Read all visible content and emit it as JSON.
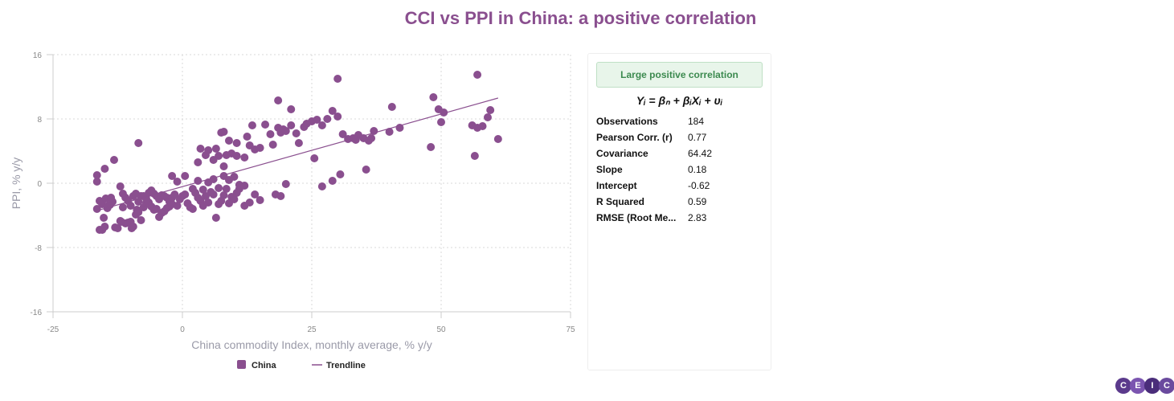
{
  "title": "CCI vs PPI in China: a positive correlation",
  "colors": {
    "series": "#8a4f8f",
    "title": "#8a4f8f",
    "badge_text": "#3c8a4f",
    "badge_bg": "#e8f5ea"
  },
  "stats_panel": {
    "badge": "Large positive correlation",
    "formula": "Yᵢ = βₙ + βᵢXᵢ + υᵢ",
    "rows": [
      {
        "label": "Observations",
        "value": "184"
      },
      {
        "label": "Pearson Corr. (r)",
        "value": "0.77"
      },
      {
        "label": "Covariance",
        "value": "64.42"
      },
      {
        "label": "Slope",
        "value": "0.18"
      },
      {
        "label": "Intercept",
        "value": "-0.62"
      },
      {
        "label": "R Squared",
        "value": "0.59"
      },
      {
        "label": "RMSE (Root Me...",
        "value": "2.83"
      }
    ]
  },
  "logo": [
    "C",
    "E",
    "I",
    "C"
  ],
  "chart_data": {
    "type": "scatter",
    "title": "CCI vs PPI in China: a positive correlation",
    "xlabel": "China commodity Index, monthly average, % y/y",
    "ylabel": "PPI, % y/y",
    "xlim": [
      -25,
      75
    ],
    "ylim": [
      -16,
      16
    ],
    "xticks": [
      "-25",
      "0",
      "25",
      "50",
      "75"
    ],
    "yticks": [
      "16",
      "8",
      "0",
      "-8",
      "-16"
    ],
    "grid": true,
    "legend_position": "bottom",
    "legend": [
      {
        "name": "China",
        "kind": "marker"
      },
      {
        "name": "Trendline",
        "kind": "line"
      }
    ],
    "trendline": {
      "x": [
        -17,
        61
      ],
      "y": [
        -3.5,
        10.6
      ]
    },
    "series": [
      {
        "name": "China",
        "points": [
          [
            -16.5,
            1
          ],
          [
            -16.5,
            0.2
          ],
          [
            -15,
            1.8
          ],
          [
            -13.2,
            2.9
          ],
          [
            -8.5,
            5
          ],
          [
            -16.5,
            -3.2
          ],
          [
            -16,
            -5.8
          ],
          [
            -15.5,
            -5.8
          ],
          [
            -15,
            -5.4
          ],
          [
            -15.2,
            -4.3
          ],
          [
            -14.5,
            -3.1
          ],
          [
            -14,
            -2.7
          ],
          [
            -13.5,
            -2.3
          ],
          [
            -13,
            -5.5
          ],
          [
            -12.5,
            -5.6
          ],
          [
            -12,
            -4.7
          ],
          [
            -11.8,
            -4.8
          ],
          [
            -11.5,
            -3
          ],
          [
            -11,
            -5
          ],
          [
            -10.5,
            -4.9
          ],
          [
            -10,
            -4.8
          ],
          [
            -9.8,
            -5.6
          ],
          [
            -9.5,
            -5.4
          ],
          [
            -9,
            -3.9
          ],
          [
            -8.8,
            -3.3
          ],
          [
            -8.5,
            -3.6
          ],
          [
            -8,
            -4.6
          ],
          [
            -7.5,
            -3
          ],
          [
            -7,
            -2.4
          ],
          [
            -6.5,
            -2.4
          ],
          [
            -6,
            -2.9
          ],
          [
            -5.5,
            -3.3
          ],
          [
            -5,
            -3.2
          ],
          [
            -4.5,
            -4.2
          ],
          [
            -4,
            -3.7
          ],
          [
            -3.5,
            -3.5
          ],
          [
            -3,
            -3.1
          ],
          [
            -2.5,
            -2.9
          ],
          [
            -2,
            -2.6
          ],
          [
            -16,
            -2.2
          ],
          [
            -15.5,
            -2.6
          ],
          [
            -14.8,
            -1.9
          ],
          [
            -14.3,
            -2.8
          ],
          [
            -13.8,
            -1.8
          ],
          [
            -12,
            -0.4
          ],
          [
            -11.5,
            -1.3
          ],
          [
            -11,
            -1.8
          ],
          [
            -10.5,
            -2.2
          ],
          [
            -10,
            -2.8
          ],
          [
            -9.5,
            -1.6
          ],
          [
            -9,
            -1.3
          ],
          [
            -8.5,
            -2.3
          ],
          [
            -8,
            -1.6
          ],
          [
            -7.5,
            -1.6
          ],
          [
            -7,
            -1.9
          ],
          [
            -6.5,
            -1.2
          ],
          [
            -6,
            -0.9
          ],
          [
            -5.5,
            -1.3
          ],
          [
            -5,
            -1.6
          ],
          [
            -4.5,
            -2
          ],
          [
            -4,
            -1.5
          ],
          [
            -3.5,
            -1.6
          ],
          [
            -3,
            -1.8
          ],
          [
            -2.5,
            -2.3
          ],
          [
            -2,
            -1.8
          ],
          [
            -1.5,
            -1.4
          ],
          [
            -1,
            -2.8
          ],
          [
            -0.5,
            -2
          ],
          [
            0,
            -1.6
          ],
          [
            0.5,
            -1.4
          ],
          [
            1,
            -2.5
          ],
          [
            1.5,
            -3
          ],
          [
            2,
            -3.2
          ],
          [
            2.5,
            -1.2
          ],
          [
            3,
            -1.8
          ],
          [
            3.5,
            -2.2
          ],
          [
            4,
            -2.8
          ],
          [
            4.5,
            -1.6
          ],
          [
            5,
            -2.4
          ],
          [
            5.5,
            -1.1
          ],
          [
            6,
            -1.4
          ],
          [
            6.5,
            -4.3
          ],
          [
            7,
            -2.6
          ],
          [
            7.5,
            -2.2
          ],
          [
            8,
            -1.5
          ],
          [
            8.5,
            -0.7
          ],
          [
            9,
            -2.5
          ],
          [
            9.5,
            -1.7
          ],
          [
            10,
            -2
          ],
          [
            10.5,
            -1.2
          ],
          [
            11,
            -0.2
          ],
          [
            12,
            -2.8
          ],
          [
            13,
            -2.4
          ],
          [
            14,
            -1.4
          ],
          [
            15,
            -2.1
          ],
          [
            -2,
            0.9
          ],
          [
            -1,
            0.2
          ],
          [
            0.5,
            0.9
          ],
          [
            2,
            -0.7
          ],
          [
            3,
            0.3
          ],
          [
            4,
            -0.8
          ],
          [
            5,
            0.1
          ],
          [
            6,
            0.5
          ],
          [
            7,
            -0.6
          ],
          [
            8,
            0.9
          ],
          [
            9,
            0.4
          ],
          [
            10,
            0.8
          ],
          [
            11,
            -0.7
          ],
          [
            12,
            -0.3
          ],
          [
            3,
            2.6
          ],
          [
            3.5,
            4.3
          ],
          [
            4.5,
            3.5
          ],
          [
            5,
            4.1
          ],
          [
            6.5,
            4.3
          ],
          [
            7,
            3.4
          ],
          [
            8,
            2.1
          ],
          [
            8.5,
            3.5
          ],
          [
            9.5,
            3.7
          ],
          [
            10.5,
            3.4
          ],
          [
            6,
            2.9
          ],
          [
            7.5,
            6.3
          ],
          [
            8,
            6.4
          ],
          [
            9,
            5.3
          ],
          [
            10.5,
            5
          ],
          [
            12,
            3.2
          ],
          [
            12.5,
            5.8
          ],
          [
            13,
            4.7
          ],
          [
            13.5,
            7.2
          ],
          [
            14,
            4.2
          ],
          [
            15,
            4.4
          ],
          [
            16,
            7.3
          ],
          [
            17,
            6.1
          ],
          [
            18.5,
            6.9
          ],
          [
            19,
            6.3
          ],
          [
            19.5,
            6.7
          ],
          [
            20,
            6.5
          ],
          [
            21,
            7.2
          ],
          [
            22,
            6.2
          ],
          [
            22.5,
            5
          ],
          [
            23.5,
            7
          ],
          [
            24,
            7.4
          ],
          [
            25,
            7.7
          ],
          [
            26,
            7.9
          ],
          [
            27,
            7.2
          ],
          [
            28,
            8
          ],
          [
            29,
            9
          ],
          [
            30,
            8.3
          ],
          [
            31,
            6.1
          ],
          [
            32,
            5.5
          ],
          [
            33,
            5.6
          ],
          [
            34,
            6
          ],
          [
            35,
            5.6
          ],
          [
            36,
            5.3
          ],
          [
            37,
            6.5
          ],
          [
            21,
            9.2
          ],
          [
            18.5,
            10.3
          ],
          [
            18,
            -1.4
          ],
          [
            19,
            -1.6
          ],
          [
            20,
            -0.1
          ],
          [
            27,
            -0.4
          ],
          [
            29,
            0.3
          ],
          [
            30.5,
            1.1
          ],
          [
            35.5,
            1.7
          ],
          [
            40,
            6.4
          ],
          [
            42,
            6.9
          ],
          [
            40.5,
            9.5
          ],
          [
            48,
            4.5
          ],
          [
            48.5,
            10.7
          ],
          [
            49.5,
            9.2
          ],
          [
            50,
            7.6
          ],
          [
            30,
            13
          ],
          [
            57,
            13.5
          ],
          [
            58,
            7.1
          ],
          [
            59,
            8.2
          ],
          [
            59.5,
            9.1
          ],
          [
            61,
            5.5
          ],
          [
            56.5,
            3.4
          ],
          [
            57,
            6.9
          ],
          [
            56,
            7.2
          ],
          [
            50.5,
            8.8
          ],
          [
            17.5,
            4.8
          ],
          [
            25.5,
            3.1
          ],
          [
            33.5,
            5.4
          ],
          [
            36.5,
            5.6
          ]
        ]
      }
    ]
  }
}
